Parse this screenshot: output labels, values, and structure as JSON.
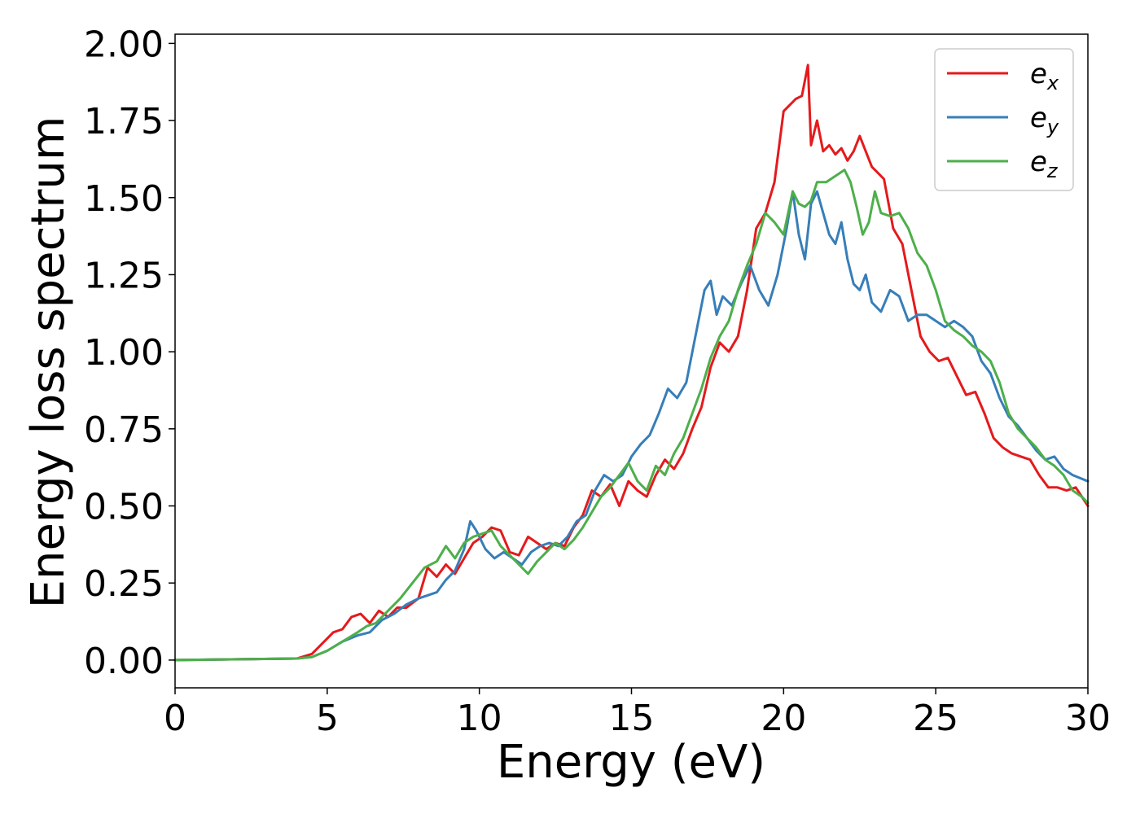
{
  "chart_data": {
    "type": "line",
    "title": "",
    "xlabel": "Energy (eV)",
    "ylabel": "Energy loss spectrum",
    "xlim": [
      0,
      30
    ],
    "ylim": [
      -0.09,
      2.03
    ],
    "x_ticks": [
      "0",
      "5",
      "10",
      "15",
      "20",
      "25",
      "30"
    ],
    "y_ticks": [
      "0.00",
      "0.25",
      "0.50",
      "0.75",
      "1.00",
      "1.25",
      "1.50",
      "1.75",
      "2.00"
    ],
    "grid": false,
    "legend_position": "top-right",
    "series": [
      {
        "name": "e_x",
        "label_main": "e",
        "label_sub": "x",
        "color": "#e41a1c",
        "x": [
          0,
          4,
          4.5,
          5,
          5.2,
          5.5,
          5.8,
          6.1,
          6.4,
          6.7,
          7,
          7.3,
          7.6,
          8,
          8.3,
          8.6,
          8.9,
          9.2,
          9.5,
          9.8,
          10.1,
          10.4,
          10.7,
          11,
          11.3,
          11.6,
          11.9,
          12.2,
          12.5,
          12.8,
          13.1,
          13.4,
          13.7,
          14,
          14.3,
          14.6,
          14.9,
          15.2,
          15.5,
          15.8,
          16.1,
          16.4,
          16.7,
          17,
          17.3,
          17.6,
          17.9,
          18.2,
          18.5,
          18.8,
          19.1,
          19.4,
          19.7,
          20,
          20.2,
          20.4,
          20.6,
          20.8,
          20.9,
          21.1,
          21.3,
          21.5,
          21.7,
          21.9,
          22.1,
          22.3,
          22.5,
          22.7,
          22.9,
          23.1,
          23.3,
          23.6,
          23.9,
          24.2,
          24.5,
          24.8,
          25.1,
          25.4,
          25.7,
          26,
          26.3,
          26.6,
          26.9,
          27.2,
          27.5,
          27.8,
          28.1,
          28.4,
          28.7,
          29,
          29.3,
          29.6,
          30
        ],
        "values": [
          0,
          0.005,
          0.02,
          0.07,
          0.09,
          0.1,
          0.14,
          0.15,
          0.12,
          0.16,
          0.14,
          0.17,
          0.17,
          0.2,
          0.3,
          0.27,
          0.31,
          0.28,
          0.33,
          0.38,
          0.4,
          0.43,
          0.42,
          0.35,
          0.34,
          0.4,
          0.38,
          0.36,
          0.38,
          0.37,
          0.43,
          0.47,
          0.55,
          0.53,
          0.57,
          0.5,
          0.58,
          0.55,
          0.53,
          0.6,
          0.65,
          0.62,
          0.67,
          0.75,
          0.82,
          0.95,
          1.03,
          1.0,
          1.05,
          1.2,
          1.4,
          1.45,
          1.55,
          1.78,
          1.8,
          1.82,
          1.83,
          1.93,
          1.67,
          1.75,
          1.65,
          1.67,
          1.64,
          1.66,
          1.62,
          1.65,
          1.7,
          1.65,
          1.6,
          1.58,
          1.56,
          1.4,
          1.35,
          1.2,
          1.05,
          1.0,
          0.97,
          0.98,
          0.92,
          0.86,
          0.87,
          0.8,
          0.72,
          0.69,
          0.67,
          0.66,
          0.65,
          0.6,
          0.56,
          0.56,
          0.55,
          0.56,
          0.5
        ]
      },
      {
        "name": "e_y",
        "label_main": "e",
        "label_sub": "y",
        "color": "#377eb8",
        "x": [
          0,
          4,
          4.5,
          5,
          5.5,
          6,
          6.4,
          6.8,
          7.2,
          7.6,
          8,
          8.3,
          8.6,
          8.9,
          9.2,
          9.5,
          9.7,
          9.9,
          10.2,
          10.5,
          10.8,
          11.1,
          11.4,
          11.7,
          12,
          12.3,
          12.6,
          12.9,
          13.2,
          13.5,
          13.8,
          14.1,
          14.4,
          14.7,
          15,
          15.3,
          15.6,
          15.9,
          16.2,
          16.5,
          16.8,
          17.1,
          17.4,
          17.6,
          17.8,
          18,
          18.3,
          18.6,
          18.9,
          19.2,
          19.5,
          19.8,
          20.1,
          20.3,
          20.5,
          20.7,
          20.9,
          21.1,
          21.3,
          21.5,
          21.7,
          21.9,
          22.1,
          22.3,
          22.5,
          22.7,
          22.9,
          23.2,
          23.5,
          23.8,
          24.1,
          24.4,
          24.7,
          25,
          25.3,
          25.6,
          25.9,
          26.2,
          26.5,
          26.8,
          27.1,
          27.4,
          27.7,
          28,
          28.3,
          28.6,
          28.9,
          29.2,
          29.5,
          30
        ],
        "values": [
          0,
          0.005,
          0.01,
          0.03,
          0.06,
          0.08,
          0.09,
          0.13,
          0.15,
          0.18,
          0.2,
          0.21,
          0.22,
          0.26,
          0.29,
          0.36,
          0.45,
          0.42,
          0.36,
          0.33,
          0.35,
          0.33,
          0.31,
          0.35,
          0.37,
          0.38,
          0.37,
          0.4,
          0.45,
          0.47,
          0.55,
          0.6,
          0.58,
          0.6,
          0.66,
          0.7,
          0.73,
          0.8,
          0.88,
          0.85,
          0.9,
          1.05,
          1.2,
          1.23,
          1.12,
          1.18,
          1.15,
          1.22,
          1.28,
          1.2,
          1.15,
          1.25,
          1.4,
          1.52,
          1.38,
          1.3,
          1.48,
          1.52,
          1.45,
          1.38,
          1.35,
          1.42,
          1.3,
          1.22,
          1.2,
          1.25,
          1.16,
          1.13,
          1.2,
          1.18,
          1.1,
          1.12,
          1.12,
          1.1,
          1.08,
          1.1,
          1.08,
          1.05,
          0.97,
          0.93,
          0.85,
          0.79,
          0.76,
          0.72,
          0.68,
          0.65,
          0.66,
          0.62,
          0.6,
          0.58
        ]
      },
      {
        "name": "e_z",
        "label_main": "e",
        "label_sub": "z",
        "color": "#4daf4a",
        "x": [
          0,
          4,
          4.5,
          5,
          5.5,
          6,
          6.3,
          6.6,
          7,
          7.4,
          7.8,
          8.2,
          8.6,
          8.9,
          9.2,
          9.5,
          9.8,
          10.1,
          10.4,
          10.7,
          11,
          11.3,
          11.6,
          11.9,
          12.2,
          12.5,
          12.8,
          13.1,
          13.4,
          13.7,
          14,
          14.3,
          14.6,
          14.9,
          15.2,
          15.5,
          15.8,
          16.1,
          16.4,
          16.7,
          17,
          17.3,
          17.6,
          17.9,
          18.2,
          18.5,
          18.8,
          19.1,
          19.4,
          19.7,
          20,
          20.3,
          20.5,
          20.7,
          20.9,
          21.1,
          21.4,
          21.7,
          22,
          22.2,
          22.4,
          22.6,
          22.8,
          23,
          23.2,
          23.5,
          23.8,
          24.1,
          24.4,
          24.7,
          25,
          25.3,
          25.6,
          25.9,
          26.2,
          26.5,
          26.8,
          27.1,
          27.4,
          27.7,
          28,
          28.3,
          28.6,
          28.9,
          29.2,
          29.5,
          29.8,
          30
        ],
        "values": [
          0,
          0.005,
          0.01,
          0.03,
          0.06,
          0.09,
          0.11,
          0.12,
          0.16,
          0.2,
          0.25,
          0.3,
          0.32,
          0.37,
          0.33,
          0.38,
          0.4,
          0.41,
          0.42,
          0.37,
          0.34,
          0.31,
          0.28,
          0.32,
          0.35,
          0.38,
          0.36,
          0.39,
          0.43,
          0.48,
          0.53,
          0.56,
          0.6,
          0.64,
          0.58,
          0.55,
          0.63,
          0.6,
          0.67,
          0.72,
          0.8,
          0.88,
          0.98,
          1.05,
          1.1,
          1.2,
          1.28,
          1.35,
          1.45,
          1.42,
          1.38,
          1.52,
          1.48,
          1.47,
          1.49,
          1.55,
          1.55,
          1.57,
          1.59,
          1.55,
          1.47,
          1.38,
          1.42,
          1.52,
          1.45,
          1.44,
          1.45,
          1.4,
          1.32,
          1.28,
          1.2,
          1.1,
          1.07,
          1.05,
          1.02,
          1.0,
          0.97,
          0.9,
          0.8,
          0.75,
          0.72,
          0.69,
          0.65,
          0.63,
          0.6,
          0.55,
          0.53,
          0.51
        ]
      }
    ]
  }
}
